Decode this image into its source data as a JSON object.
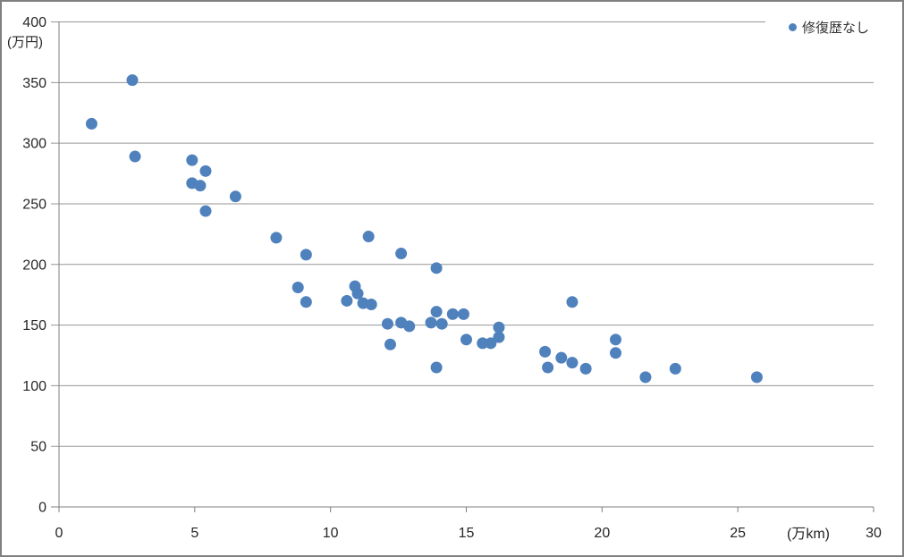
{
  "chart_data": {
    "type": "scatter",
    "title": "",
    "grid": true,
    "legend": {
      "position": "top-right"
    },
    "colors": {
      "marker": "#4F81BD",
      "gridline": "#969696",
      "axis": "#7F7F7F",
      "text": "#262626",
      "frame_border": "#808080",
      "background": "#FFFFFF"
    },
    "x_axis": {
      "label": "(万km)",
      "min": 0,
      "max": 30,
      "tick_step": 5,
      "ticks": [
        0,
        5,
        10,
        15,
        20,
        25,
        30
      ]
    },
    "y_axis": {
      "label": "(万円)",
      "min": 0,
      "max": 400,
      "tick_step": 50,
      "ticks": [
        0,
        50,
        100,
        150,
        200,
        250,
        300,
        350,
        400
      ]
    },
    "series": [
      {
        "name": "修復歴なし",
        "color": "#4F81BD",
        "marker": "circle",
        "points": [
          [
            1.2,
            316
          ],
          [
            2.7,
            352
          ],
          [
            2.8,
            289
          ],
          [
            4.9,
            286
          ],
          [
            4.9,
            267
          ],
          [
            5.2,
            265
          ],
          [
            5.4,
            277
          ],
          [
            5.4,
            244
          ],
          [
            6.5,
            256
          ],
          [
            8.0,
            222
          ],
          [
            8.8,
            181
          ],
          [
            9.1,
            208
          ],
          [
            9.1,
            169
          ],
          [
            10.6,
            170
          ],
          [
            10.9,
            182
          ],
          [
            11.0,
            176
          ],
          [
            11.2,
            168
          ],
          [
            11.4,
            223
          ],
          [
            11.5,
            167
          ],
          [
            12.1,
            151
          ],
          [
            12.2,
            134
          ],
          [
            12.6,
            209
          ],
          [
            12.6,
            152
          ],
          [
            12.9,
            149
          ],
          [
            13.7,
            152
          ],
          [
            13.9,
            161
          ],
          [
            13.9,
            197
          ],
          [
            13.9,
            115
          ],
          [
            14.1,
            151
          ],
          [
            14.5,
            159
          ],
          [
            14.9,
            159
          ],
          [
            15.0,
            138
          ],
          [
            15.6,
            135
          ],
          [
            15.9,
            135
          ],
          [
            16.2,
            148
          ],
          [
            16.2,
            140
          ],
          [
            17.9,
            128
          ],
          [
            18.0,
            115
          ],
          [
            18.5,
            123
          ],
          [
            18.9,
            169
          ],
          [
            18.9,
            119
          ],
          [
            19.4,
            114
          ],
          [
            20.5,
            138
          ],
          [
            20.5,
            127
          ],
          [
            21.6,
            107
          ],
          [
            22.7,
            114
          ],
          [
            25.7,
            107
          ]
        ]
      }
    ]
  }
}
